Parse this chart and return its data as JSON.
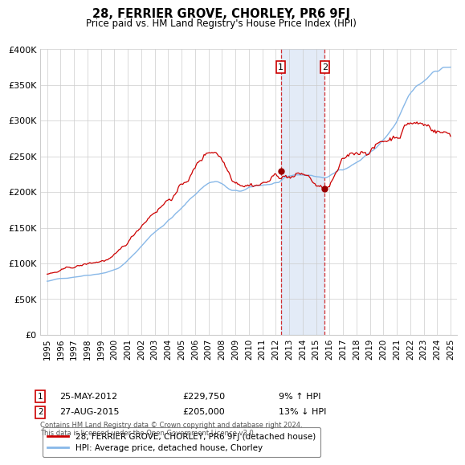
{
  "title": "28, FERRIER GROVE, CHORLEY, PR6 9FJ",
  "subtitle": "Price paid vs. HM Land Registry's House Price Index (HPI)",
  "ylim": [
    0,
    400000
  ],
  "yticks": [
    0,
    50000,
    100000,
    150000,
    200000,
    250000,
    300000,
    350000,
    400000
  ],
  "ytick_labels": [
    "£0",
    "£50K",
    "£100K",
    "£150K",
    "£200K",
    "£250K",
    "£300K",
    "£350K",
    "£400K"
  ],
  "sale1_date": "25-MAY-2012",
  "sale1_price": 229750,
  "sale1_label": "9% ↑ HPI",
  "sale2_date": "27-AUG-2015",
  "sale2_price": 205000,
  "sale2_label": "13% ↓ HPI",
  "sale1_year": 2012.38,
  "sale2_year": 2015.65,
  "shade_color": "#c8d8f0",
  "vline_color": "#cc0000",
  "hpi_color": "#88b8e8",
  "price_color": "#cc0000",
  "dot_color": "#990000",
  "legend_label1": "28, FERRIER GROVE, CHORLEY, PR6 9FJ (detached house)",
  "legend_label2": "HPI: Average price, detached house, Chorley",
  "footer": "Contains HM Land Registry data © Crown copyright and database right 2024.\nThis data is licensed under the Open Government Licence v3.0.",
  "background_color": "#ffffff",
  "grid_color": "#cccccc",
  "xstart": 1995,
  "xend": 2025
}
